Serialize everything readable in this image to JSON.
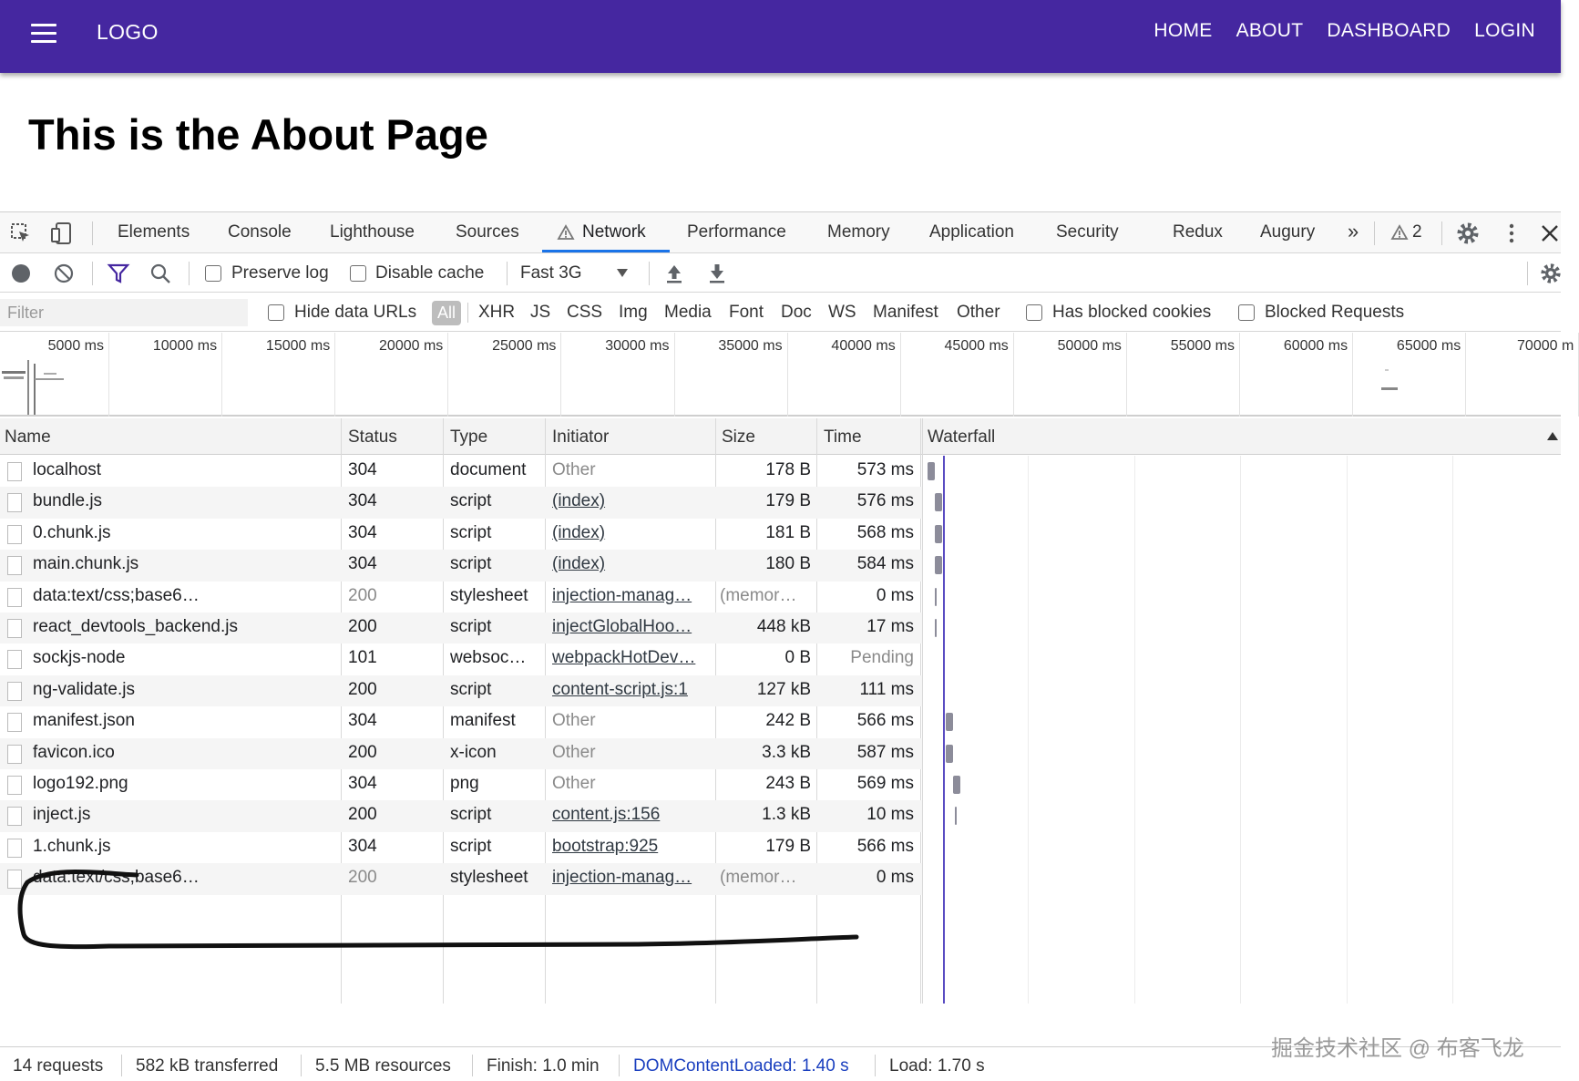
{
  "app": {
    "logo": "LOGO",
    "nav": [
      "HOME",
      "ABOUT",
      "DASHBOARD",
      "LOGIN"
    ],
    "page_title": "This is the About Page"
  },
  "devtools": {
    "tabs": [
      "Elements",
      "Console",
      "Lighthouse",
      "Sources",
      "Network",
      "Performance",
      "Memory",
      "Application",
      "Security",
      "Redux",
      "Augury"
    ],
    "active_tab": "Network",
    "overflow": "»",
    "warnings_count": "2",
    "toolbar": {
      "preserve_log": "Preserve log",
      "disable_cache": "Disable cache",
      "throttling": "Fast 3G"
    },
    "filter": {
      "placeholder": "Filter",
      "hide_data_urls": "Hide data URLs",
      "all": "All",
      "types": [
        "XHR",
        "JS",
        "CSS",
        "Img",
        "Media",
        "Font",
        "Doc",
        "WS",
        "Manifest",
        "Other"
      ],
      "has_blocked_cookies": "Has blocked cookies",
      "blocked_requests": "Blocked Requests"
    },
    "overview_ticks": [
      "5000 ms",
      "10000 ms",
      "15000 ms",
      "20000 ms",
      "25000 ms",
      "30000 ms",
      "35000 ms",
      "40000 ms",
      "45000 ms",
      "50000 ms",
      "55000 ms",
      "60000 ms",
      "65000 ms",
      "70000 m"
    ],
    "columns": [
      "Name",
      "Status",
      "Type",
      "Initiator",
      "Size",
      "Time",
      "Waterfall"
    ],
    "requests": [
      {
        "name": "localhost",
        "status": "304",
        "type": "document",
        "initiator": "Other",
        "size": "178 B",
        "time": "573 ms"
      },
      {
        "name": "bundle.js",
        "status": "304",
        "type": "script",
        "initiator": "(index)",
        "size": "179 B",
        "time": "576 ms"
      },
      {
        "name": "0.chunk.js",
        "status": "304",
        "type": "script",
        "initiator": "(index)",
        "size": "181 B",
        "time": "568 ms"
      },
      {
        "name": "main.chunk.js",
        "status": "304",
        "type": "script",
        "initiator": "(index)",
        "size": "180 B",
        "time": "584 ms"
      },
      {
        "name": "data:text/css;base6…",
        "status": "200",
        "type": "stylesheet",
        "initiator": "injection-manag…",
        "size": "(memor…",
        "time": "0 ms"
      },
      {
        "name": "react_devtools_backend.js",
        "status": "200",
        "type": "script",
        "initiator": "injectGlobalHoo…",
        "size": "448 kB",
        "time": "17 ms"
      },
      {
        "name": "sockjs-node",
        "status": "101",
        "type": "websoc…",
        "initiator": "webpackHotDev…",
        "size": "0 B",
        "time": "Pending"
      },
      {
        "name": "ng-validate.js",
        "status": "200",
        "type": "script",
        "initiator": "content-script.js:1",
        "size": "127 kB",
        "time": "111 ms"
      },
      {
        "name": "manifest.json",
        "status": "304",
        "type": "manifest",
        "initiator": "Other",
        "size": "242 B",
        "time": "566 ms"
      },
      {
        "name": "favicon.ico",
        "status": "200",
        "type": "x-icon",
        "initiator": "Other",
        "size": "3.3 kB",
        "time": "587 ms"
      },
      {
        "name": "logo192.png",
        "status": "304",
        "type": "png",
        "initiator": "Other",
        "size": "243 B",
        "time": "569 ms"
      },
      {
        "name": "inject.js",
        "status": "200",
        "type": "script",
        "initiator": "content.js:156",
        "size": "1.3 kB",
        "time": "10 ms"
      },
      {
        "name": "1.chunk.js",
        "status": "304",
        "type": "script",
        "initiator": "bootstrap:925",
        "size": "179 B",
        "time": "566 ms"
      },
      {
        "name": "data:text/css;base6…",
        "status": "200",
        "type": "stylesheet",
        "initiator": "injection-manag…",
        "size": "(memor…",
        "time": "0 ms"
      }
    ],
    "status_bar": {
      "requests": "14 requests",
      "transferred": "582 kB transferred",
      "resources": "5.5 MB resources",
      "finish": "Finish: 1.0 min",
      "dom_content_loaded": "DOMContentLoaded: 1.40 s",
      "load": "Load: 1.70 s"
    }
  },
  "watermark": "掘金技术社区 @ 布客飞龙",
  "colors": {
    "appbar": "#4527a0",
    "dcl": "#1a3fbf",
    "active_tab_underline": "#1a73e8"
  }
}
